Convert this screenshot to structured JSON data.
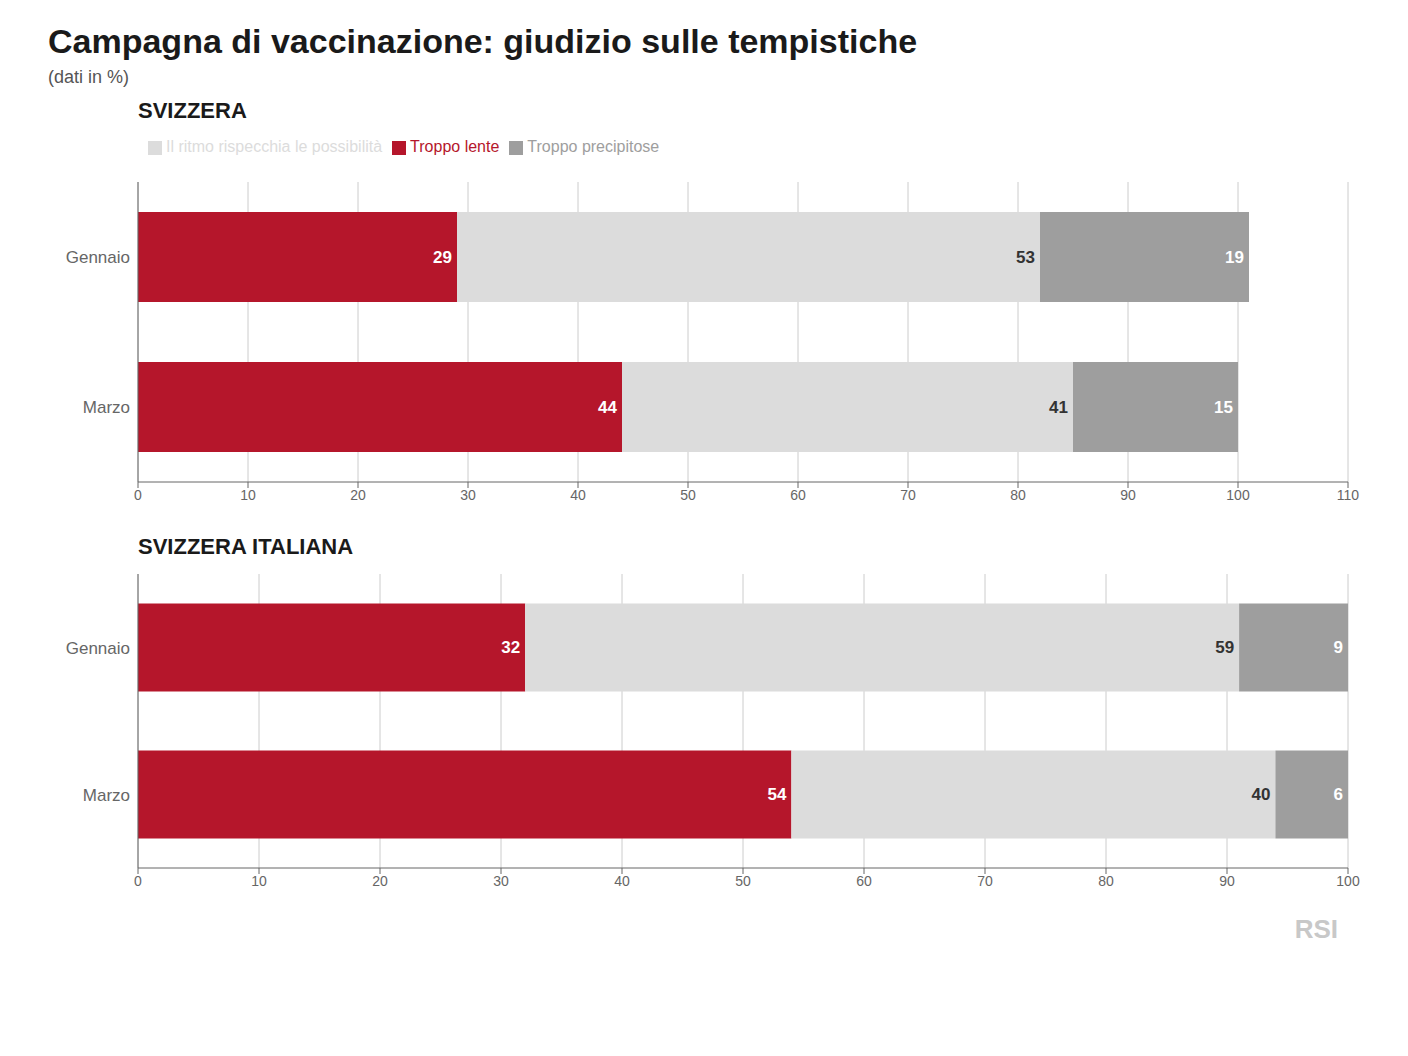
{
  "title": "Campagna di vaccinazione: giudizio sulle tempistiche",
  "subtitle": "(dati in %)",
  "annotations": [
    "RSI"
  ],
  "chart_data": [
    {
      "type": "bar",
      "orientation": "horizontal",
      "stacked": true,
      "title": "SVIZZERA",
      "categories": [
        "Gennaio",
        "Marzo"
      ],
      "series": [
        {
          "name": "Troppo lente",
          "color": "#b5162b",
          "values": [
            29,
            44
          ]
        },
        {
          "name": "Il ritmo rispecchia le possibilità",
          "color": "#dcdcdc",
          "values": [
            53,
            41
          ]
        },
        {
          "name": "Troppo precipitose",
          "color": "#9e9e9e",
          "values": [
            19,
            15
          ]
        }
      ],
      "xlim": [
        0,
        110
      ],
      "xticks": [
        0,
        10,
        20,
        30,
        40,
        50,
        60,
        70,
        80,
        90,
        100,
        110
      ],
      "grid": true,
      "data_labels": true,
      "legend": "top"
    },
    {
      "type": "bar",
      "orientation": "horizontal",
      "stacked": true,
      "title": "SVIZZERA ITALIANA",
      "categories": [
        "Gennaio",
        "Marzo"
      ],
      "series": [
        {
          "name": "Troppo lente",
          "color": "#b5162b",
          "values": [
            32,
            54
          ]
        },
        {
          "name": "Il ritmo rispecchia le possibilità",
          "color": "#dcdcdc",
          "values": [
            59,
            40
          ]
        },
        {
          "name": "Troppo precipitose",
          "color": "#9e9e9e",
          "values": [
            9,
            6
          ]
        }
      ],
      "xlim": [
        0,
        100
      ],
      "xticks": [
        0,
        10,
        20,
        30,
        40,
        50,
        60,
        70,
        80,
        90,
        100
      ],
      "grid": true,
      "data_labels": true
    }
  ]
}
